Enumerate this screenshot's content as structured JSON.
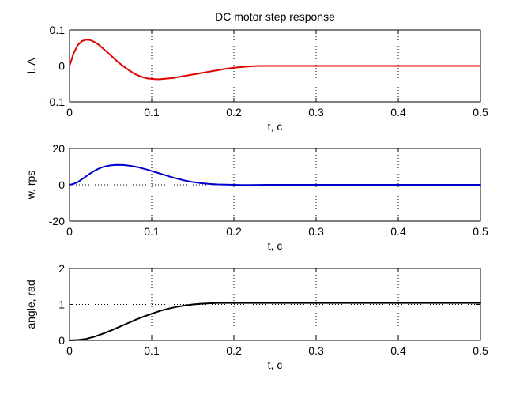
{
  "chart_data": [
    {
      "type": "line",
      "title": "DC motor step response",
      "xlabel": "t, c",
      "ylabel": "I, A",
      "xlim": [
        0,
        0.5
      ],
      "ylim": [
        -0.1,
        0.1
      ],
      "xticks": [
        0,
        0.1,
        0.2,
        0.3,
        0.4,
        0.5
      ],
      "yticks": [
        -0.1,
        0,
        0.1
      ],
      "xtick_labels": [
        "0",
        "0.1",
        "0.2",
        "0.3",
        "0.4",
        "0.5"
      ],
      "ytick_labels": [
        "-0.1",
        "0",
        "0.1"
      ],
      "grid": true,
      "color": "#e00000",
      "series": [
        {
          "x": [
            0,
            0.005,
            0.01,
            0.015,
            0.02,
            0.025,
            0.03,
            0.035,
            0.04,
            0.045,
            0.05,
            0.055,
            0.06,
            0.065,
            0.07,
            0.075,
            0.08,
            0.085,
            0.09,
            0.095,
            0.1,
            0.105,
            0.11,
            0.115,
            0.12,
            0.125,
            0.13,
            0.14,
            0.15,
            0.16,
            0.17,
            0.18,
            0.19,
            0.2,
            0.21,
            0.22,
            0.23,
            0.24,
            0.26,
            0.28,
            0.3,
            0.35,
            0.4,
            0.45,
            0.5
          ],
          "y": [
            0,
            0.035,
            0.058,
            0.069,
            0.073,
            0.072,
            0.067,
            0.06,
            0.05,
            0.04,
            0.03,
            0.019,
            0.009,
            0.0,
            -0.008,
            -0.016,
            -0.023,
            -0.028,
            -0.032,
            -0.035,
            -0.036,
            -0.037,
            -0.037,
            -0.036,
            -0.035,
            -0.034,
            -0.032,
            -0.028,
            -0.024,
            -0.02,
            -0.016,
            -0.012,
            -0.008,
            -0.005,
            -0.003,
            -0.001,
            0.0,
            0.0,
            0.0,
            0.0,
            0.0,
            0.0,
            0.0,
            0.0,
            0.0
          ]
        }
      ]
    },
    {
      "type": "line",
      "xlabel": "t, c",
      "ylabel": "w, rps",
      "xlim": [
        0,
        0.5
      ],
      "ylim": [
        -20,
        20
      ],
      "xticks": [
        0,
        0.1,
        0.2,
        0.3,
        0.4,
        0.5
      ],
      "yticks": [
        -20,
        0,
        20
      ],
      "xtick_labels": [
        "0",
        "0.1",
        "0.2",
        "0.3",
        "0.4",
        "0.5"
      ],
      "ytick_labels": [
        "-20",
        "0",
        "20"
      ],
      "grid": true,
      "color": "#0000cc",
      "series": [
        {
          "x": [
            0,
            0.005,
            0.01,
            0.015,
            0.02,
            0.025,
            0.03,
            0.035,
            0.04,
            0.045,
            0.05,
            0.055,
            0.06,
            0.065,
            0.07,
            0.075,
            0.08,
            0.085,
            0.09,
            0.095,
            0.1,
            0.105,
            0.11,
            0.115,
            0.12,
            0.13,
            0.14,
            0.15,
            0.16,
            0.17,
            0.18,
            0.19,
            0.2,
            0.21,
            0.22,
            0.24,
            0.3,
            0.35,
            0.4,
            0.45,
            0.5
          ],
          "y": [
            0,
            0.5,
            1.5,
            3.0,
            4.6,
            6.2,
            7.6,
            8.8,
            9.7,
            10.3,
            10.7,
            10.9,
            11.0,
            10.9,
            10.7,
            10.4,
            10.0,
            9.5,
            8.9,
            8.3,
            7.6,
            6.9,
            6.2,
            5.5,
            4.8,
            3.5,
            2.4,
            1.5,
            0.9,
            0.5,
            0.2,
            0.1,
            0.0,
            -0.1,
            -0.1,
            0.0,
            0.0,
            0.0,
            0.0,
            0.0,
            0.0
          ]
        }
      ]
    },
    {
      "type": "line",
      "xlabel": "t, c",
      "ylabel": "angle, rad",
      "xlim": [
        0,
        0.5
      ],
      "ylim": [
        0,
        2
      ],
      "xticks": [
        0,
        0.1,
        0.2,
        0.3,
        0.4,
        0.5
      ],
      "yticks": [
        0,
        1,
        2
      ],
      "xtick_labels": [
        "0",
        "0.1",
        "0.2",
        "0.3",
        "0.4",
        "0.5"
      ],
      "ytick_labels": [
        "0",
        "1",
        "2"
      ],
      "grid": true,
      "color": "#000000",
      "series": [
        {
          "x": [
            0,
            0.01,
            0.02,
            0.03,
            0.04,
            0.05,
            0.06,
            0.07,
            0.08,
            0.09,
            0.1,
            0.11,
            0.12,
            0.13,
            0.14,
            0.15,
            0.16,
            0.17,
            0.18,
            0.2,
            0.25,
            0.3,
            0.35,
            0.4,
            0.45,
            0.5
          ],
          "y": [
            0,
            0.01,
            0.04,
            0.1,
            0.18,
            0.27,
            0.37,
            0.47,
            0.57,
            0.66,
            0.74,
            0.82,
            0.88,
            0.93,
            0.97,
            1.0,
            1.02,
            1.03,
            1.04,
            1.04,
            1.04,
            1.04,
            1.04,
            1.04,
            1.04,
            1.04
          ]
        }
      ]
    }
  ]
}
